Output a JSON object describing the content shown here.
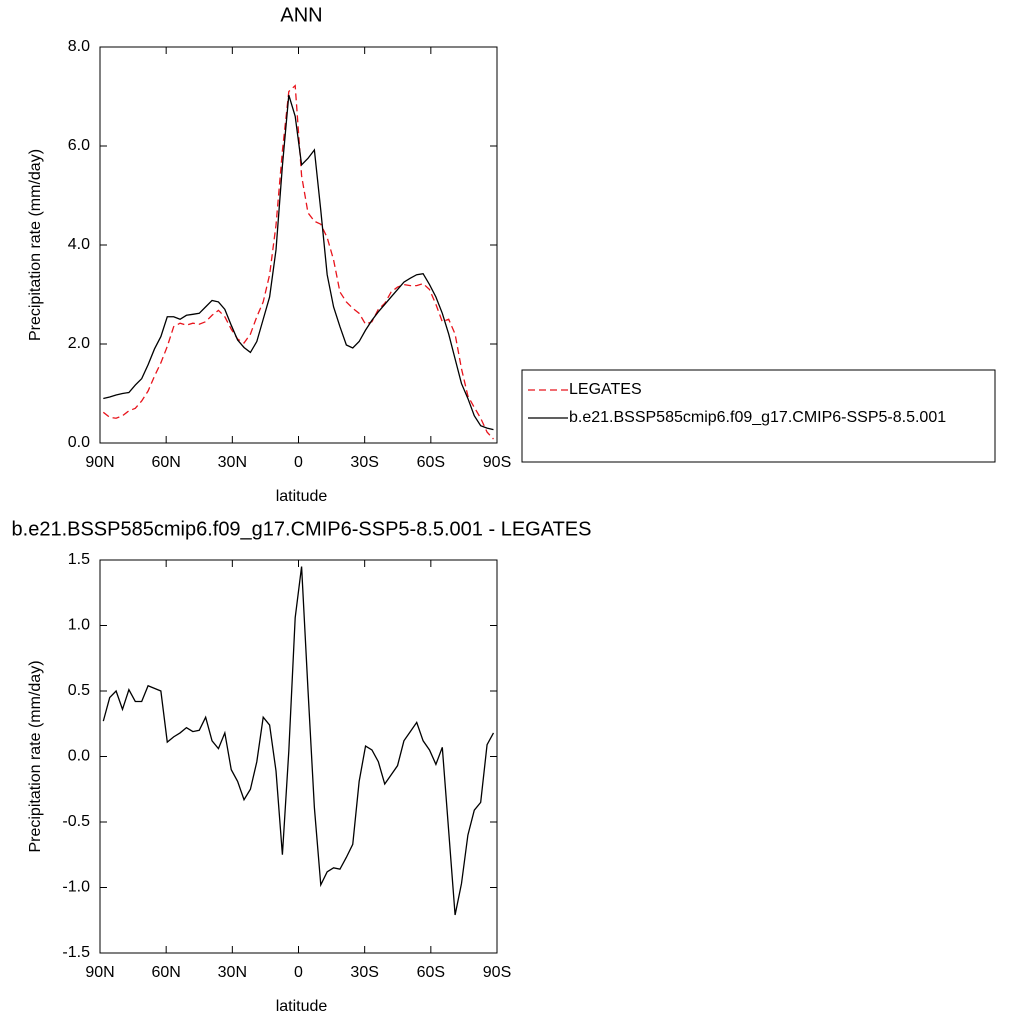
{
  "chart_data": [
    {
      "type": "line",
      "title": "ANN",
      "x_label": "latitude",
      "y_label": "Precipitation rate (mm/day)",
      "x": [
        88.5,
        85.6,
        82.7,
        79.8,
        76.9,
        74,
        71.1,
        68.2,
        65.3,
        62.4,
        59.5,
        56.6,
        53.7,
        50.8,
        47.9,
        45,
        42.1,
        39.2,
        36.3,
        33.4,
        30.5,
        27.6,
        24.7,
        21.8,
        18.9,
        16,
        13.1,
        10.2,
        7.3,
        4.4,
        1.5,
        -1.4,
        -4.3,
        -7.2,
        -10.1,
        -13,
        -15.9,
        -18.8,
        -21.7,
        -24.6,
        -27.5,
        -30.4,
        -33.3,
        -36.2,
        -39.1,
        -42,
        -44.9,
        -47.8,
        -50.7,
        -53.6,
        -56.5,
        -59.4,
        -62.3,
        -65.2,
        -68.1,
        -71,
        -73.9,
        -76.8,
        -79.7,
        -82.6,
        -85.5,
        -88.4
      ],
      "series": [
        {
          "name": "LEGATES",
          "color": "#e8141c",
          "linestyle": "dashed",
          "values": [
            0.62,
            0.52,
            0.5,
            0.55,
            0.65,
            0.7,
            0.85,
            1.05,
            1.35,
            1.62,
            1.95,
            2.35,
            2.42,
            2.38,
            2.42,
            2.4,
            2.45,
            2.58,
            2.68,
            2.55,
            2.3,
            2.1,
            2.02,
            2.2,
            2.55,
            2.85,
            3.4,
            4.4,
            5.9,
            7.1,
            7.22,
            5.4,
            4.65,
            4.48,
            4.42,
            4.15,
            3.7,
            3.05,
            2.85,
            2.72,
            2.62,
            2.4,
            2.45,
            2.7,
            2.82,
            3.05,
            3.15,
            3.2,
            3.18,
            3.18,
            3.22,
            3.1,
            2.8,
            2.45,
            2.5,
            2.2,
            1.5,
            0.95,
            0.72,
            0.5,
            0.22,
            0.08
          ]
        },
        {
          "name": "b.e21.BSSP585cmip6.f09_g17.CMIP6-SSP5-8.5.001",
          "color": "#000000",
          "linestyle": "solid",
          "values": [
            0.9,
            0.93,
            0.97,
            1,
            1.02,
            1.17,
            1.3,
            1.58,
            1.9,
            2.15,
            2.55,
            2.55,
            2.5,
            2.58,
            2.6,
            2.62,
            2.75,
            2.88,
            2.85,
            2.7,
            2.38,
            2.08,
            1.93,
            1.83,
            2.05,
            2.5,
            2.95,
            3.9,
            5.6,
            7.03,
            6.6,
            5.62,
            5.75,
            5.92,
            4.7,
            3.4,
            2.75,
            2.35,
            1.98,
            1.92,
            2.05,
            2.28,
            2.48,
            2.65,
            2.8,
            2.95,
            3.1,
            3.25,
            3.33,
            3.4,
            3.42,
            3.2,
            2.95,
            2.62,
            2.2,
            1.7,
            1.2,
            0.9,
            0.55,
            0.35,
            0.3,
            0.27
          ]
        }
      ],
      "xlim": [
        90,
        -90
      ],
      "xticks": [
        {
          "value": 90,
          "label": "90N"
        },
        {
          "value": 60,
          "label": "60N"
        },
        {
          "value": 30,
          "label": "30N"
        },
        0,
        {
          "value": -30,
          "label": "30S"
        },
        {
          "value": -60,
          "label": "60S"
        },
        {
          "value": -90,
          "label": "90S"
        }
      ],
      "ylim": [
        0,
        8
      ],
      "yticks": [
        {
          "value": 0,
          "label": "0.0"
        },
        {
          "value": 2,
          "label": "2.0"
        },
        {
          "value": 4,
          "label": "4.0"
        },
        {
          "value": 6,
          "label": "6.0"
        },
        {
          "value": 8,
          "label": "8.0"
        }
      ],
      "legend": "right"
    },
    {
      "type": "line",
      "title": "b.e21.BSSP585cmip6.f09_g17.CMIP6-SSP5-8.5.001 - LEGATES",
      "x_label": "latitude",
      "y_label": "Precipitation rate (mm/day)",
      "x": [
        88.5,
        85.6,
        82.7,
        79.8,
        76.9,
        74,
        71.1,
        68.2,
        65.3,
        62.4,
        59.5,
        56.6,
        53.7,
        50.8,
        47.9,
        45,
        42.1,
        39.2,
        36.3,
        33.4,
        30.5,
        27.6,
        24.7,
        21.8,
        18.9,
        16,
        13.1,
        10.2,
        7.3,
        4.4,
        1.5,
        -1.4,
        -4.3,
        -7.2,
        -10.1,
        -13,
        -15.9,
        -18.8,
        -21.7,
        -24.6,
        -27.5,
        -30.4,
        -33.3,
        -36.2,
        -39.1,
        -42,
        -44.9,
        -47.8,
        -50.7,
        -53.6,
        -56.5,
        -59.4,
        -62.3,
        -65.2,
        -68.1,
        -71,
        -73.9,
        -76.8,
        -79.7,
        -82.6,
        -85.5,
        -88.4
      ],
      "values": [
        0.27,
        0.45,
        0.5,
        0.36,
        0.51,
        0.42,
        0.42,
        0.54,
        0.52,
        0.5,
        0.11,
        0.15,
        0.18,
        0.22,
        0.19,
        0.2,
        0.3,
        0.12,
        0.06,
        0.18,
        -0.1,
        -0.19,
        -0.33,
        -0.25,
        -0.04,
        0.3,
        0.24,
        -0.11,
        -0.75,
        0.04,
        1.06,
        1.45,
        0.51,
        -0.39,
        -0.98,
        -0.88,
        -0.85,
        -0.86,
        -0.77,
        -0.67,
        -0.19,
        0.08,
        0.05,
        -0.04,
        -0.21,
        -0.14,
        -0.07,
        0.12,
        0.19,
        0.26,
        0.12,
        0.05,
        -0.06,
        0.07,
        -0.57,
        -1.21,
        -0.97,
        -0.6,
        -0.41,
        -0.35,
        0.09,
        0.18
      ],
      "color": "#000000",
      "xlim": [
        90,
        -90
      ],
      "xticks": [
        {
          "value": 90,
          "label": "90N"
        },
        {
          "value": 60,
          "label": "60N"
        },
        {
          "value": 30,
          "label": "30N"
        },
        0,
        {
          "value": -30,
          "label": "30S"
        },
        {
          "value": -60,
          "label": "60S"
        },
        {
          "value": -90,
          "label": "90S"
        }
      ],
      "ylim": [
        -1.5,
        1.5
      ],
      "yticks": [
        -1.5,
        {
          "value": -1,
          "label": "-1.0"
        },
        -0.5,
        {
          "value": 0,
          "label": "0.0"
        },
        0.5,
        {
          "value": 1,
          "label": "1.0"
        },
        1.5
      ]
    }
  ]
}
